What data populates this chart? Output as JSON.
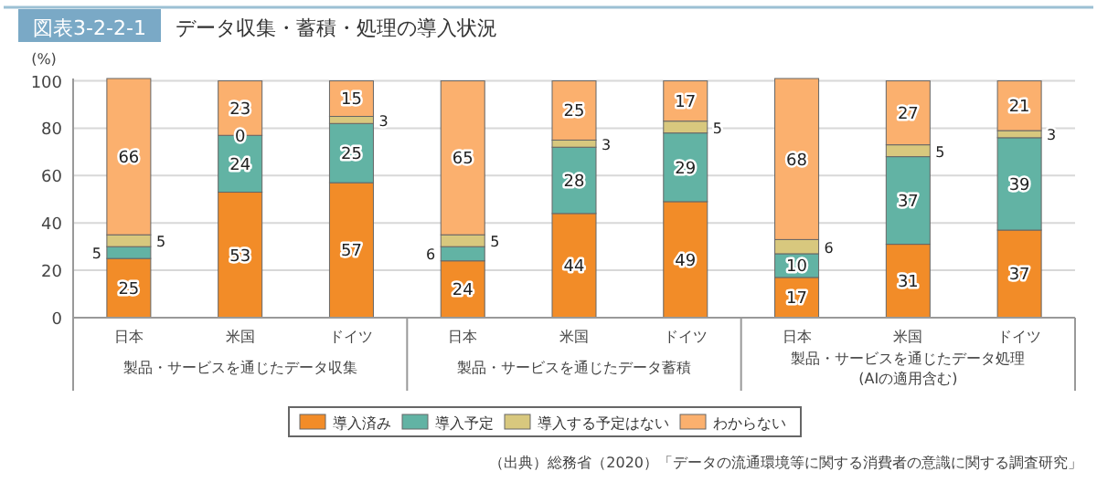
{
  "chart_data": {
    "type": "bar",
    "stacked": true,
    "title": "データ収集・蓄積・処理の導入状況",
    "ylabel": "(%)",
    "categories": [
      "日本",
      "米国",
      "ドイツ",
      "日本",
      "米国",
      "ドイツ",
      "日本",
      "米国",
      "ドイツ"
    ],
    "series": [
      {
        "name": "導入済み",
        "color": "#f28c28",
        "values": [
          25,
          53,
          57,
          24,
          44,
          49,
          17,
          31,
          37
        ]
      },
      {
        "name": "導入予定",
        "color": "#62b3a4",
        "values": [
          5,
          24,
          25,
          6,
          28,
          29,
          10,
          37,
          39
        ]
      },
      {
        "name": "導入する予定はない",
        "color": "#d8c87e",
        "values": [
          5,
          0,
          3,
          5,
          3,
          5,
          6,
          5,
          3
        ]
      },
      {
        "name": "わからない",
        "color": "#fbb06e",
        "values": [
          66,
          23,
          15,
          65,
          25,
          17,
          68,
          27,
          21
        ]
      }
    ],
    "ylim": [
      0,
      101
    ],
    "yticks": [
      0,
      20,
      40,
      60,
      80,
      100
    ],
    "grid": "y",
    "legend": "bottom",
    "data_labels": true,
    "annotations": [
      "図表3-2-2-1",
      "製品・サービスを通じたデータ収集",
      "製品・サービスを通じたデータ蓄積",
      "製品・サービスを通じたデータ処理\n(AIの適用含む)",
      "（出典）総務省（2020）「データの流通環境等に関する消費者の意識に関する調査研究」"
    ]
  }
}
